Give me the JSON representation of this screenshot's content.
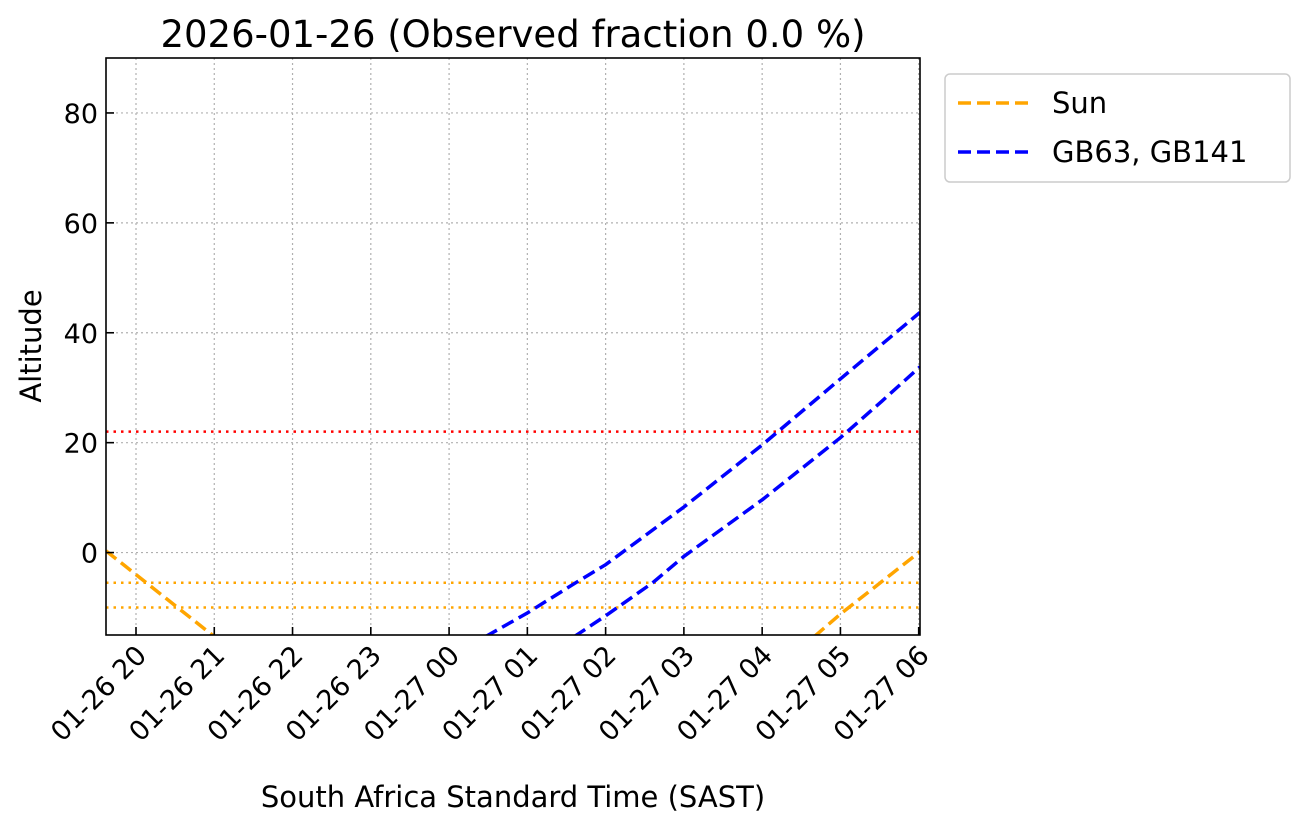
{
  "chart_data": {
    "type": "line",
    "title": "2026-01-26 (Observed fraction 0.0 %)",
    "xlabel": "South Africa Standard Time (SAST)",
    "ylabel": "Altitude",
    "xlim": [
      "2026-01-26 19:37",
      "2026-01-27 06:01"
    ],
    "ylim": [
      -15,
      90
    ],
    "x_ticks": [
      {
        "t": "2026-01-26 20:00",
        "label": "01-26 20"
      },
      {
        "t": "2026-01-26 21:00",
        "label": "01-26 21"
      },
      {
        "t": "2026-01-26 22:00",
        "label": "01-26 22"
      },
      {
        "t": "2026-01-26 23:00",
        "label": "01-26 23"
      },
      {
        "t": "2026-01-27 00:00",
        "label": "01-27 00"
      },
      {
        "t": "2026-01-27 01:00",
        "label": "01-27 01"
      },
      {
        "t": "2026-01-27 02:00",
        "label": "01-27 02"
      },
      {
        "t": "2026-01-27 03:00",
        "label": "01-27 03"
      },
      {
        "t": "2026-01-27 04:00",
        "label": "01-27 04"
      },
      {
        "t": "2026-01-27 05:00",
        "label": "01-27 05"
      },
      {
        "t": "2026-01-27 06:00",
        "label": "01-27 06"
      }
    ],
    "y_ticks": [
      0,
      20,
      40,
      60,
      80
    ],
    "grid": true,
    "legend_placement": "outside-top-right",
    "legend": [
      {
        "label": "Sun",
        "color": "#FFA500",
        "style": "dashed"
      },
      {
        "label": "GB63, GB141",
        "color": "#0000FF",
        "style": "dashed"
      }
    ],
    "series": [
      {
        "name": "Sun",
        "color": "#FFA500",
        "style": "dashed",
        "points": [
          [
            "2026-01-26 19:37",
            0.3
          ],
          [
            "2026-01-26 20:00",
            -4
          ],
          [
            "2026-01-26 21:00",
            -15.3
          ]
        ]
      },
      {
        "name": "Sun",
        "color": "#FFA500",
        "style": "dashed",
        "points": [
          [
            "2026-01-27 04:40",
            -15.3
          ],
          [
            "2026-01-27 05:00",
            -11.2
          ],
          [
            "2026-01-27 06:00",
            0
          ],
          [
            "2026-01-27 06:01",
            0.2
          ]
        ]
      },
      {
        "name": "GB63, GB141",
        "color": "#0000FF",
        "style": "dashed",
        "points": [
          [
            "2026-01-27 00:28",
            -15.3
          ],
          [
            "2026-01-27 01:00",
            -11
          ],
          [
            "2026-01-27 01:37",
            -5.5
          ],
          [
            "2026-01-27 02:00",
            -2.2
          ],
          [
            "2026-01-27 03:00",
            8.3
          ],
          [
            "2026-01-27 04:00",
            19.6
          ],
          [
            "2026-01-27 05:00",
            31.6
          ],
          [
            "2026-01-27 06:00",
            43.5
          ],
          [
            "2026-01-27 06:01",
            43.7
          ]
        ]
      },
      {
        "name": "GB63, GB141",
        "color": "#0000FF",
        "style": "dashed",
        "points": [
          [
            "2026-01-27 01:36",
            -15.3
          ],
          [
            "2026-01-27 02:00",
            -11.5
          ],
          [
            "2026-01-27 02:36",
            -5.5
          ],
          [
            "2026-01-27 03:00",
            -0.7
          ],
          [
            "2026-01-27 04:00",
            9.6
          ],
          [
            "2026-01-27 05:00",
            20.9
          ],
          [
            "2026-01-27 05:32",
            27.6
          ],
          [
            "2026-01-27 06:00",
            33.6
          ],
          [
            "2026-01-27 06:01",
            33.8
          ]
        ]
      }
    ],
    "hlines": [
      {
        "y": 22,
        "color": "#FF0000",
        "style": "dotted"
      },
      {
        "y": -5.5,
        "color": "#FFA500",
        "style": "dotted"
      },
      {
        "y": -10,
        "color": "#FFA500",
        "style": "dotted"
      }
    ]
  }
}
